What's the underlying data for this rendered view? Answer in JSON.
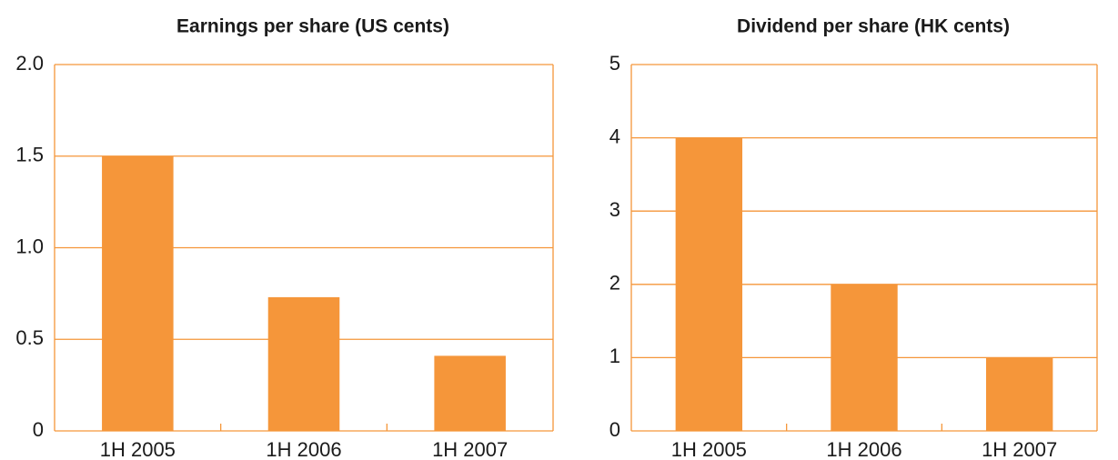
{
  "chart_data": [
    {
      "type": "bar",
      "title": "Earnings per share (US cents)",
      "categories": [
        "1H 2005",
        "1H 2006",
        "1H 2007"
      ],
      "values": [
        1.5,
        0.73,
        0.41
      ],
      "color": "#f5963a",
      "ylim": [
        0,
        2
      ],
      "yticks": [
        0,
        0.5,
        {
          "value": 1,
          "label": "1.0"
        },
        1.5,
        {
          "value": 2,
          "label": "2.0"
        }
      ],
      "grid": true
    },
    {
      "type": "bar",
      "title": "Dividend per share (HK cents)",
      "categories": [
        "1H 2005",
        "1H 2006",
        "1H 2007"
      ],
      "values": [
        4,
        2,
        1
      ],
      "color": "#f5963a",
      "ylim": [
        0,
        5
      ],
      "yticks": [
        0,
        1,
        2,
        3,
        4,
        5
      ],
      "grid": true
    }
  ]
}
